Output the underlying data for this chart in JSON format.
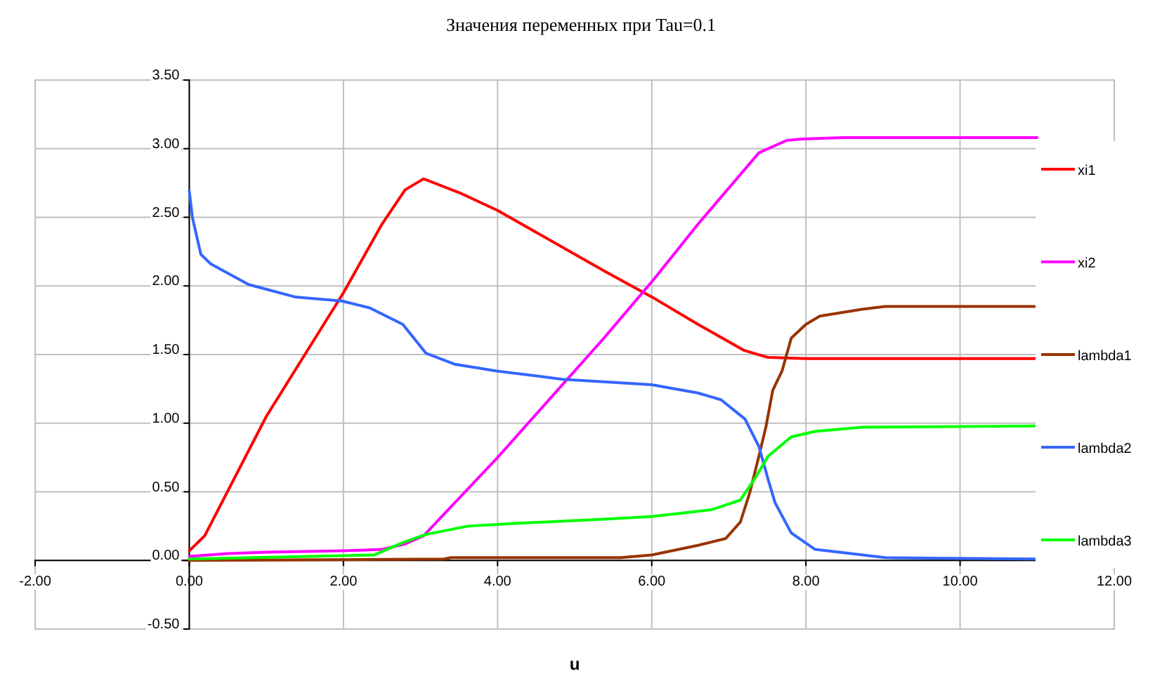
{
  "chart_data": {
    "type": "line",
    "title": "Значения переменных при Tau=0.1",
    "xlabel": "u",
    "xlim": [
      -2,
      12
    ],
    "xticks": [
      {
        "value": -2,
        "label": "-2.00"
      },
      {
        "value": 0,
        "label": "0.00"
      },
      {
        "value": 2,
        "label": "2.00"
      },
      {
        "value": 4,
        "label": "4.00"
      },
      {
        "value": 6,
        "label": "6.00"
      },
      {
        "value": 8,
        "label": "8.00"
      },
      {
        "value": 10,
        "label": "10.00"
      },
      {
        "value": 12,
        "label": "12.00"
      }
    ],
    "ylim": [
      -0.5,
      3.5
    ],
    "yticks": [
      {
        "value": -0.5,
        "label": "-0.50"
      },
      {
        "value": 0,
        "label": "0.00"
      },
      {
        "value": 0.5,
        "label": "0.50"
      },
      {
        "value": 1,
        "label": "1.00"
      },
      {
        "value": 1.5,
        "label": "1.50"
      },
      {
        "value": 2,
        "label": "2.00"
      },
      {
        "value": 2.5,
        "label": "2.50"
      },
      {
        "value": 3,
        "label": "3.00"
      },
      {
        "value": 3.5,
        "label": "3.50"
      }
    ],
    "grid": true,
    "legend": "right",
    "marker": "none",
    "line_style": "solid",
    "series": [
      {
        "name": "xi1",
        "color": "#ff0000",
        "x": [
          0,
          0.2,
          1,
          2,
          2.5,
          2.8,
          3.04,
          3.5,
          4,
          5.38,
          6,
          6.6,
          7.2,
          7.5,
          8,
          11
        ],
        "values": [
          0.07,
          0.18,
          1.05,
          1.95,
          2.45,
          2.7,
          2.78,
          2.68,
          2.55,
          2.11,
          1.92,
          1.72,
          1.53,
          1.48,
          1.47,
          1.47
        ]
      },
      {
        "name": "xi2",
        "color": "#ff00ff",
        "x": [
          0,
          0.5,
          1,
          2,
          2.5,
          2.8,
          3.04,
          4,
          5.38,
          6,
          6.6,
          7.39,
          7.75,
          7.95,
          8.48,
          11
        ],
        "values": [
          0.03,
          0.05,
          0.06,
          0.07,
          0.08,
          0.12,
          0.18,
          0.75,
          1.62,
          2.03,
          2.45,
          2.97,
          3.06,
          3.07,
          3.08,
          3.08
        ]
      },
      {
        "name": "lambda1",
        "color": "#993300",
        "x": [
          0,
          3.3,
          3.4,
          5.6,
          6,
          6.6,
          6.96,
          7.15,
          7.27,
          7.39,
          7.48,
          7.57,
          7.69,
          7.81,
          8,
          8.18,
          8.73,
          9.03,
          11
        ],
        "values": [
          0,
          0.01,
          0.02,
          0.02,
          0.04,
          0.11,
          0.16,
          0.28,
          0.49,
          0.76,
          0.97,
          1.24,
          1.38,
          1.62,
          1.72,
          1.78,
          1.83,
          1.85,
          1.85
        ]
      },
      {
        "name": "lambda2",
        "color": "#3366ff",
        "x": [
          0,
          0.04,
          0.15,
          0.28,
          0.77,
          1.37,
          1.98,
          2.34,
          2.77,
          3.07,
          3.44,
          3.99,
          4.84,
          6,
          6.6,
          6.9,
          7.21,
          7.39,
          7.51,
          7.6,
          7.81,
          8.12,
          9.03,
          11
        ],
        "values": [
          2.69,
          2.5,
          2.23,
          2.16,
          2.01,
          1.92,
          1.89,
          1.84,
          1.72,
          1.51,
          1.43,
          1.38,
          1.32,
          1.28,
          1.22,
          1.17,
          1.03,
          0.83,
          0.59,
          0.42,
          0.2,
          0.08,
          0.02,
          0.01
        ]
      },
      {
        "name": "lambda3",
        "color": "#00ff00",
        "x": [
          0,
          2.4,
          2.77,
          3.07,
          3.62,
          4.23,
          5.38,
          6,
          6.78,
          7.15,
          7.33,
          7.51,
          7.81,
          8.12,
          8.73,
          11
        ],
        "values": [
          0.01,
          0.04,
          0.13,
          0.19,
          0.25,
          0.27,
          0.3,
          0.32,
          0.37,
          0.44,
          0.59,
          0.76,
          0.9,
          0.94,
          0.97,
          0.98
        ]
      }
    ]
  }
}
